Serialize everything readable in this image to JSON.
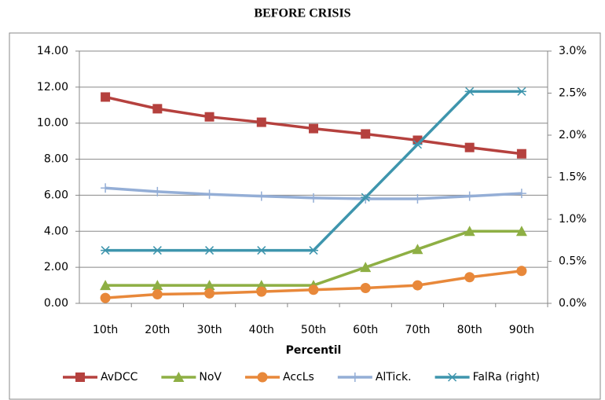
{
  "chart_data": {
    "type": "line",
    "title": "BEFORE CRISIS",
    "xlabel": "Percentil",
    "categories": [
      "10th",
      "20th",
      "30th",
      "40th",
      "50th",
      "60th",
      "70th",
      "80th",
      "90th"
    ],
    "ylim": [
      0,
      14
    ],
    "yticks": [
      {
        "value": 0,
        "label": "0.00"
      },
      {
        "value": 2,
        "label": "2.00"
      },
      {
        "value": 4,
        "label": "4.00"
      },
      {
        "value": 6,
        "label": "6.00"
      },
      {
        "value": 8,
        "label": "8.00"
      },
      {
        "value": 10,
        "label": "10.00"
      },
      {
        "value": 12,
        "label": "12.00"
      },
      {
        "value": 14,
        "label": "14.00"
      }
    ],
    "y2lim": [
      0,
      3
    ],
    "y2ticks": [
      {
        "value": 0,
        "label": "0.0%"
      },
      {
        "value": 0.5,
        "label": "0.5%"
      },
      {
        "value": 1,
        "label": "1.0%"
      },
      {
        "value": 1.5,
        "label": "1.5%"
      },
      {
        "value": 2,
        "label": "2.0%"
      },
      {
        "value": 2.5,
        "label": "2.5%"
      },
      {
        "value": 3,
        "label": "3.0%"
      }
    ],
    "grid": true,
    "legend": "bottom",
    "series": [
      {
        "name": "AvDCC",
        "color": "#b5413e",
        "marker": "square",
        "values": [
          11.45,
          10.8,
          10.35,
          10.05,
          9.7,
          9.4,
          9.05,
          8.65,
          8.3
        ]
      },
      {
        "name": "NoV",
        "color": "#8eaf44",
        "marker": "triangle",
        "values": [
          1,
          1,
          1,
          1,
          1,
          2,
          3,
          4,
          4
        ]
      },
      {
        "name": "AccLs",
        "color": "#e8883a",
        "marker": "circle",
        "values": [
          0.3,
          0.5,
          0.55,
          0.65,
          0.75,
          0.85,
          1.0,
          1.45,
          1.8
        ]
      },
      {
        "name": "AlTick.",
        "color": "#94aed6",
        "marker": "plus",
        "values": [
          6.4,
          6.2,
          6.05,
          5.95,
          5.85,
          5.8,
          5.8,
          5.95,
          6.1
        ]
      },
      {
        "name": "FalRa (right)",
        "color": "#3e95ad",
        "marker": "star",
        "axis": "y2",
        "values": [
          0.63,
          0.63,
          0.63,
          0.63,
          0.63,
          1.26,
          1.89,
          2.52,
          2.52
        ]
      }
    ]
  }
}
